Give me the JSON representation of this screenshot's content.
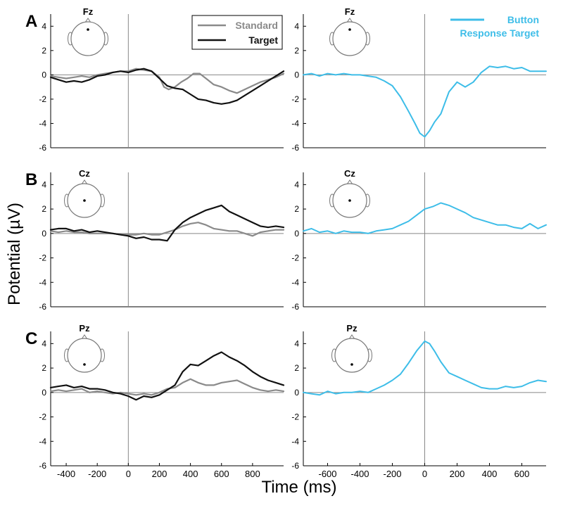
{
  "figure": {
    "ylabel": "Potential (µV)",
    "xlabel": "Time (ms)"
  },
  "colors": {
    "standard": "#8a8a8a",
    "target": "#111111",
    "button": "#3dbde8",
    "axis": "#000000",
    "refline": "#888888"
  },
  "chart_data": [
    {
      "panel": "A",
      "electrode": "Fz",
      "type": "line",
      "xlim": [
        -500,
        1000
      ],
      "ylim": [
        -6,
        5
      ],
      "yticks": [
        -6,
        -4,
        -2,
        0,
        2,
        4
      ],
      "xticks": [],
      "legend": {
        "position": "top-right"
      },
      "series": [
        {
          "name": "Standard",
          "color": "#8a8a8a",
          "x": [
            -500,
            -450,
            -400,
            -350,
            -300,
            -250,
            -200,
            -150,
            -100,
            -50,
            0,
            50,
            100,
            150,
            200,
            230,
            260,
            300,
            340,
            380,
            420,
            460,
            500,
            550,
            600,
            650,
            700,
            750,
            800,
            850,
            900,
            950,
            1000
          ],
          "y": [
            -0.1,
            -0.2,
            -0.3,
            -0.2,
            -0.1,
            -0.2,
            0.0,
            0.1,
            0.2,
            0.3,
            0.3,
            0.5,
            0.4,
            0.3,
            -0.2,
            -1.0,
            -1.2,
            -1.0,
            -0.6,
            -0.3,
            0.1,
            0.1,
            -0.3,
            -0.8,
            -1.0,
            -1.3,
            -1.5,
            -1.2,
            -0.9,
            -0.6,
            -0.4,
            -0.2,
            0.1
          ]
        },
        {
          "name": "Target",
          "color": "#111111",
          "x": [
            -500,
            -450,
            -400,
            -350,
            -300,
            -250,
            -200,
            -150,
            -100,
            -50,
            0,
            50,
            100,
            150,
            200,
            250,
            300,
            350,
            400,
            450,
            500,
            550,
            600,
            650,
            700,
            750,
            800,
            850,
            900,
            950,
            1000
          ],
          "y": [
            -0.2,
            -0.4,
            -0.6,
            -0.5,
            -0.6,
            -0.4,
            -0.1,
            0.0,
            0.2,
            0.3,
            0.2,
            0.4,
            0.5,
            0.3,
            -0.3,
            -0.9,
            -1.1,
            -1.2,
            -1.6,
            -2.0,
            -2.1,
            -2.3,
            -2.4,
            -2.3,
            -2.1,
            -1.7,
            -1.3,
            -0.9,
            -0.5,
            -0.1,
            0.3
          ]
        }
      ]
    },
    {
      "panel": "A",
      "electrode": "Fz",
      "type": "line",
      "xlim": [
        -750,
        750
      ],
      "ylim": [
        -6,
        5
      ],
      "yticks": [
        -6,
        -4,
        -2,
        0,
        2,
        4
      ],
      "xticks": [],
      "legend": {
        "position": "top-right"
      },
      "series": [
        {
          "name": "Button Response Target",
          "color": "#3dbde8",
          "x": [
            -750,
            -700,
            -650,
            -600,
            -550,
            -500,
            -450,
            -400,
            -350,
            -300,
            -250,
            -200,
            -150,
            -100,
            -60,
            -30,
            0,
            30,
            60,
            100,
            150,
            200,
            250,
            300,
            350,
            400,
            450,
            500,
            550,
            600,
            650,
            700,
            750
          ],
          "y": [
            0.0,
            0.1,
            -0.1,
            0.1,
            0.0,
            0.1,
            0.0,
            0.0,
            -0.1,
            -0.2,
            -0.5,
            -0.9,
            -1.8,
            -3.0,
            -4.0,
            -4.8,
            -5.1,
            -4.6,
            -3.9,
            -3.2,
            -1.4,
            -0.6,
            -1.0,
            -0.6,
            0.2,
            0.7,
            0.6,
            0.7,
            0.5,
            0.6,
            0.3,
            0.3,
            0.3
          ]
        }
      ]
    },
    {
      "panel": "B",
      "electrode": "Cz",
      "type": "line",
      "xlim": [
        -500,
        1000
      ],
      "ylim": [
        -6,
        5
      ],
      "yticks": [
        -6,
        -4,
        -2,
        0,
        2,
        4
      ],
      "xticks": [],
      "series": [
        {
          "name": "Standard",
          "color": "#8a8a8a",
          "x": [
            -500,
            -450,
            -400,
            -350,
            -300,
            -250,
            -200,
            -150,
            -100,
            -50,
            0,
            50,
            100,
            150,
            200,
            250,
            300,
            350,
            400,
            450,
            500,
            550,
            600,
            650,
            700,
            750,
            800,
            850,
            900,
            950,
            1000
          ],
          "y": [
            0.2,
            0.1,
            0.2,
            0.1,
            0.1,
            0.0,
            0.0,
            0.0,
            0.0,
            -0.1,
            -0.1,
            -0.1,
            0.0,
            -0.1,
            -0.1,
            0.1,
            0.3,
            0.6,
            0.8,
            0.9,
            0.7,
            0.4,
            0.3,
            0.2,
            0.2,
            0.0,
            -0.2,
            0.1,
            0.2,
            0.3,
            0.3
          ]
        },
        {
          "name": "Target",
          "color": "#111111",
          "x": [
            -500,
            -450,
            -400,
            -350,
            -300,
            -250,
            -200,
            -150,
            -100,
            -50,
            0,
            50,
            100,
            150,
            200,
            250,
            300,
            350,
            400,
            450,
            500,
            550,
            600,
            650,
            700,
            750,
            800,
            850,
            900,
            950,
            1000
          ],
          "y": [
            0.3,
            0.4,
            0.4,
            0.2,
            0.3,
            0.1,
            0.2,
            0.1,
            0.0,
            -0.1,
            -0.2,
            -0.4,
            -0.3,
            -0.5,
            -0.5,
            -0.6,
            0.3,
            0.9,
            1.3,
            1.6,
            1.9,
            2.1,
            2.3,
            1.8,
            1.5,
            1.2,
            0.9,
            0.6,
            0.5,
            0.6,
            0.5
          ]
        }
      ]
    },
    {
      "panel": "B",
      "electrode": "Cz",
      "type": "line",
      "xlim": [
        -750,
        750
      ],
      "ylim": [
        -6,
        5
      ],
      "yticks": [
        -6,
        -4,
        -2,
        0,
        2,
        4
      ],
      "xticks": [],
      "series": [
        {
          "name": "Button Response Target",
          "color": "#3dbde8",
          "x": [
            -750,
            -700,
            -650,
            -600,
            -550,
            -500,
            -450,
            -400,
            -350,
            -300,
            -250,
            -200,
            -150,
            -100,
            -50,
            0,
            50,
            100,
            150,
            200,
            250,
            300,
            350,
            400,
            450,
            500,
            550,
            600,
            650,
            700,
            750
          ],
          "y": [
            0.2,
            0.4,
            0.1,
            0.2,
            0.0,
            0.2,
            0.1,
            0.1,
            0.0,
            0.2,
            0.3,
            0.4,
            0.7,
            1.0,
            1.5,
            2.0,
            2.2,
            2.5,
            2.3,
            2.0,
            1.7,
            1.3,
            1.1,
            0.9,
            0.7,
            0.7,
            0.5,
            0.4,
            0.8,
            0.4,
            0.7
          ]
        }
      ]
    },
    {
      "panel": "C",
      "electrode": "Pz",
      "type": "line",
      "xlim": [
        -500,
        1000
      ],
      "ylim": [
        -6,
        5
      ],
      "yticks": [
        -6,
        -4,
        -2,
        0,
        2,
        4
      ],
      "xticks": [
        -400,
        -200,
        0,
        200,
        400,
        600,
        800
      ],
      "series": [
        {
          "name": "Standard",
          "color": "#8a8a8a",
          "x": [
            -500,
            -450,
            -400,
            -350,
            -300,
            -250,
            -200,
            -150,
            -100,
            -50,
            0,
            50,
            100,
            150,
            200,
            250,
            300,
            350,
            400,
            450,
            500,
            550,
            600,
            650,
            700,
            750,
            800,
            850,
            900,
            950,
            1000
          ],
          "y": [
            0.1,
            0.2,
            0.1,
            0.2,
            0.3,
            0.0,
            0.1,
            0.0,
            -0.1,
            0.0,
            -0.1,
            -0.2,
            -0.1,
            -0.2,
            0.0,
            0.3,
            0.4,
            0.8,
            1.1,
            0.8,
            0.6,
            0.6,
            0.8,
            0.9,
            1.0,
            0.7,
            0.4,
            0.2,
            0.1,
            0.2,
            0.1
          ]
        },
        {
          "name": "Target",
          "color": "#111111",
          "x": [
            -500,
            -450,
            -400,
            -350,
            -300,
            -250,
            -200,
            -150,
            -100,
            -50,
            0,
            50,
            100,
            150,
            200,
            250,
            300,
            350,
            400,
            450,
            500,
            550,
            600,
            650,
            700,
            750,
            800,
            850,
            900,
            950,
            1000
          ],
          "y": [
            0.4,
            0.5,
            0.6,
            0.4,
            0.5,
            0.3,
            0.3,
            0.2,
            0.0,
            -0.1,
            -0.3,
            -0.6,
            -0.3,
            -0.4,
            -0.2,
            0.2,
            0.6,
            1.7,
            2.3,
            2.2,
            2.6,
            3.0,
            3.3,
            2.9,
            2.6,
            2.2,
            1.7,
            1.3,
            1.0,
            0.8,
            0.6
          ]
        }
      ]
    },
    {
      "panel": "C",
      "electrode": "Pz",
      "type": "line",
      "xlim": [
        -750,
        750
      ],
      "ylim": [
        -6,
        5
      ],
      "yticks": [
        -6,
        -4,
        -2,
        0,
        2,
        4
      ],
      "xticks": [
        -600,
        -400,
        -200,
        0,
        200,
        400,
        600
      ],
      "series": [
        {
          "name": "Button Response Target",
          "color": "#3dbde8",
          "x": [
            -750,
            -700,
            -650,
            -600,
            -550,
            -500,
            -450,
            -400,
            -350,
            -300,
            -250,
            -200,
            -150,
            -100,
            -50,
            0,
            30,
            60,
            100,
            150,
            200,
            250,
            300,
            350,
            400,
            450,
            500,
            550,
            600,
            650,
            700,
            750
          ],
          "y": [
            0.0,
            -0.1,
            -0.2,
            0.1,
            -0.1,
            0.0,
            0.0,
            0.1,
            0.0,
            0.3,
            0.6,
            1.0,
            1.5,
            2.4,
            3.4,
            4.2,
            4.0,
            3.4,
            2.5,
            1.6,
            1.3,
            1.0,
            0.7,
            0.4,
            0.3,
            0.3,
            0.5,
            0.4,
            0.5,
            0.8,
            1.0,
            0.9
          ]
        }
      ]
    }
  ]
}
